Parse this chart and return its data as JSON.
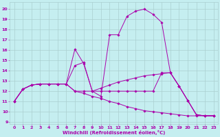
{
  "xlabel": "Windchill (Refroidissement éolien,°C)",
  "bg_color": "#c5eef0",
  "grid_color": "#aacfcf",
  "line_color": "#aa00aa",
  "xlim": [
    -0.5,
    23.5
  ],
  "ylim": [
    8.8,
    20.7
  ],
  "yticks": [
    9,
    10,
    11,
    12,
    13,
    14,
    15,
    16,
    17,
    18,
    19,
    20
  ],
  "xticks": [
    0,
    1,
    2,
    3,
    4,
    5,
    6,
    7,
    8,
    9,
    10,
    11,
    12,
    13,
    14,
    15,
    16,
    17,
    18,
    19,
    20,
    21,
    22,
    23
  ],
  "series": [
    {
      "x": [
        0,
        1,
        2,
        3,
        4,
        5,
        6,
        7,
        8,
        9,
        10,
        11,
        12,
        13,
        14,
        15,
        16,
        17,
        18,
        19,
        20,
        21,
        22,
        23
      ],
      "y": [
        11.0,
        12.2,
        12.6,
        12.7,
        12.7,
        12.7,
        12.7,
        14.5,
        14.8,
        12.0,
        11.5,
        17.5,
        17.5,
        19.3,
        19.8,
        20.0,
        19.5,
        18.7,
        13.8,
        12.5,
        11.1,
        9.7,
        9.6,
        9.6
      ]
    },
    {
      "x": [
        0,
        1,
        2,
        3,
        4,
        5,
        6,
        7,
        8,
        9,
        10,
        11,
        12,
        13,
        14,
        15,
        16,
        17,
        18,
        19,
        20,
        21,
        22,
        23
      ],
      "y": [
        11.0,
        12.2,
        12.6,
        12.7,
        12.7,
        12.7,
        12.7,
        16.1,
        14.7,
        12.0,
        12.0,
        12.0,
        12.0,
        12.0,
        12.0,
        12.0,
        12.0,
        13.8,
        13.8,
        12.5,
        11.1,
        9.7,
        9.6,
        9.6
      ]
    },
    {
      "x": [
        0,
        1,
        2,
        3,
        4,
        5,
        6,
        7,
        8,
        9,
        10,
        11,
        12,
        13,
        14,
        15,
        16,
        17,
        18,
        19,
        20,
        21,
        22,
        23
      ],
      "y": [
        11.0,
        12.2,
        12.6,
        12.7,
        12.7,
        12.7,
        12.7,
        12.0,
        12.0,
        12.0,
        12.3,
        12.6,
        12.9,
        13.1,
        13.3,
        13.5,
        13.6,
        13.7,
        13.8,
        12.5,
        11.1,
        9.7,
        9.6,
        9.6
      ]
    },
    {
      "x": [
        0,
        1,
        2,
        3,
        4,
        5,
        6,
        7,
        8,
        9,
        10,
        11,
        12,
        13,
        14,
        15,
        16,
        17,
        18,
        19,
        20,
        21,
        22,
        23
      ],
      "y": [
        11.0,
        12.2,
        12.6,
        12.7,
        12.7,
        12.7,
        12.7,
        12.0,
        11.8,
        11.5,
        11.3,
        11.0,
        10.8,
        10.5,
        10.3,
        10.1,
        10.0,
        9.9,
        9.8,
        9.7,
        9.6,
        9.6,
        9.6,
        9.6
      ]
    }
  ]
}
